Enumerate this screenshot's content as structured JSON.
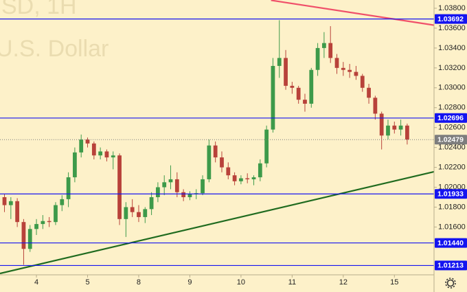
{
  "chart_data": {
    "type": "candlestick",
    "watermark": [
      "SD, 1H",
      "U.S. Dollar"
    ],
    "categories": [
      null,
      null,
      null,
      null,
      null,
      "4",
      null,
      null,
      null,
      null,
      null,
      null,
      null,
      "5",
      null,
      null,
      null,
      null,
      null,
      null,
      null,
      "8",
      null,
      null,
      null,
      null,
      null,
      null,
      null,
      "9",
      null,
      null,
      null,
      null,
      null,
      null,
      null,
      "10",
      null,
      null,
      null,
      null,
      null,
      null,
      null,
      "11",
      null,
      null,
      null,
      null,
      null,
      null,
      null,
      "12",
      null,
      null,
      null,
      null,
      null,
      null,
      null,
      "15",
      null,
      null
    ],
    "open": [
      1.019,
      1.0182,
      1.0186,
      1.0165,
      1.0138,
      1.0158,
      1.0163,
      1.0166,
      1.0165,
      1.0182,
      1.0188,
      1.021,
      1.0235,
      1.0248,
      1.0244,
      1.0232,
      1.0236,
      1.023,
      1.0232,
      1.0168,
      1.018,
      1.0175,
      1.017,
      1.0178,
      1.019,
      1.02,
      1.0205,
      1.0208,
      1.0195,
      1.019,
      1.0193,
      1.0194,
      1.0208,
      1.0242,
      1.023,
      1.022,
      1.0212,
      1.0206,
      1.0209,
      1.0208,
      1.021,
      1.0224,
      1.0258,
      1.0322,
      1.033,
      1.0302,
      1.03,
      1.0288,
      1.0284,
      1.0318,
      1.034,
      1.0345,
      1.033,
      1.032,
      1.0318,
      1.0316,
      1.0312,
      1.03,
      1.029,
      1.0274,
      1.0252,
      1.0262,
      1.0258,
      1.0262
    ],
    "high": [
      1.0193,
      1.019,
      1.0189,
      1.0168,
      1.0162,
      1.0168,
      1.0172,
      1.017,
      1.0185,
      1.0192,
      1.0215,
      1.024,
      1.0253,
      1.025,
      1.0246,
      1.024,
      1.0238,
      1.0236,
      1.0234,
      1.0185,
      1.0188,
      1.0182,
      1.018,
      1.0195,
      1.0205,
      1.0212,
      1.0222,
      1.0215,
      1.0198,
      1.0196,
      1.0198,
      1.0212,
      1.0248,
      1.0246,
      1.0236,
      1.0225,
      1.0215,
      1.0212,
      1.0214,
      1.0212,
      1.0228,
      1.0262,
      1.033,
      1.0368,
      1.0338,
      1.0306,
      1.0302,
      1.0294,
      1.032,
      1.0345,
      1.0356,
      1.0362,
      1.0334,
      1.0326,
      1.0324,
      1.0322,
      1.0314,
      1.0304,
      1.0292,
      1.0276,
      1.0268,
      1.0266,
      1.0268,
      1.0264
    ],
    "low": [
      1.0175,
      1.0168,
      1.016,
      1.0122,
      1.0135,
      1.0152,
      1.0158,
      1.016,
      1.0162,
      1.0176,
      1.018,
      1.0205,
      1.023,
      1.024,
      1.0228,
      1.0228,
      1.0226,
      1.0218,
      1.0162,
      1.015,
      1.017,
      1.0165,
      1.0164,
      1.0172,
      1.0185,
      1.0192,
      1.0198,
      1.019,
      1.0186,
      1.0187,
      1.0188,
      1.0192,
      1.0205,
      1.0225,
      1.0215,
      1.0208,
      1.0202,
      1.0203,
      1.0204,
      1.0202,
      1.0206,
      1.022,
      1.0255,
      1.031,
      1.0298,
      1.0294,
      1.0284,
      1.0276,
      1.028,
      1.0312,
      1.033,
      1.0325,
      1.0314,
      1.0312,
      1.031,
      1.0308,
      1.0296,
      1.0284,
      1.0268,
      1.0238,
      1.0248,
      1.0254,
      1.0252,
      1.0243
    ],
    "close": [
      1.0182,
      1.0186,
      1.0165,
      1.0138,
      1.0158,
      1.0163,
      1.0166,
      1.0165,
      1.0182,
      1.0188,
      1.021,
      1.0235,
      1.0248,
      1.0244,
      1.0232,
      1.0236,
      1.023,
      1.0232,
      1.0168,
      1.018,
      1.0175,
      1.017,
      1.0178,
      1.019,
      1.02,
      1.0205,
      1.0208,
      1.0195,
      1.019,
      1.0193,
      1.0194,
      1.0208,
      1.0242,
      1.023,
      1.022,
      1.0212,
      1.0206,
      1.0209,
      1.0208,
      1.021,
      1.0224,
      1.0258,
      1.0322,
      1.033,
      1.0302,
      1.03,
      1.0288,
      1.0284,
      1.0318,
      1.034,
      1.0345,
      1.033,
      1.032,
      1.0318,
      1.0316,
      1.0312,
      1.03,
      1.029,
      1.0274,
      1.0252,
      1.0262,
      1.0258,
      1.0262,
      1.0248
    ],
    "up_color": "#3d9a4a",
    "down_color": "#b8423a",
    "xlim": [
      -0.7,
      67.2
    ],
    "ylim": [
      1.01133,
      1.03883
    ],
    "yticks": [
      {
        "value": 1.038,
        "label": "1.03800"
      },
      {
        "value": 1.036,
        "label": "1.03600"
      },
      {
        "value": 1.034,
        "label": "1.03400"
      },
      {
        "value": 1.032,
        "label": "1.03200"
      },
      {
        "value": 1.03,
        "label": "1.03000"
      },
      {
        "value": 1.028,
        "label": "1.02800"
      },
      {
        "value": 1.026,
        "label": "1.02600"
      },
      {
        "value": 1.024,
        "label": "1.02400"
      },
      {
        "value": 1.022,
        "label": "1.02200"
      },
      {
        "value": 1.02,
        "label": "1.02000"
      },
      {
        "value": 1.018,
        "label": "1.01800"
      },
      {
        "value": 1.016,
        "label": "1.01600"
      }
    ],
    "grid": false,
    "levels": {
      "color": "#1414f0",
      "items": [
        {
          "value": 1.03692,
          "label": "1.03692"
        },
        {
          "value": 1.02696,
          "label": "1.02696"
        },
        {
          "value": 1.01933,
          "label": "1.01933"
        },
        {
          "value": 1.0144,
          "label": "1.01440"
        },
        {
          "value": 1.01213,
          "label": "1.01213"
        }
      ]
    },
    "current_price": {
      "value": 1.02479,
      "label": "1.02479",
      "color": "#7d7d7d"
    },
    "trendlines": [
      {
        "color": "#f0506a",
        "points": [
          [
            41.7,
            1.0388
          ],
          [
            67.2,
            1.0363
          ]
        ]
      },
      {
        "color": "#1f6b1f",
        "points": [
          [
            -0.7,
            1.01133
          ],
          [
            67.2,
            1.02156
          ]
        ]
      }
    ]
  }
}
